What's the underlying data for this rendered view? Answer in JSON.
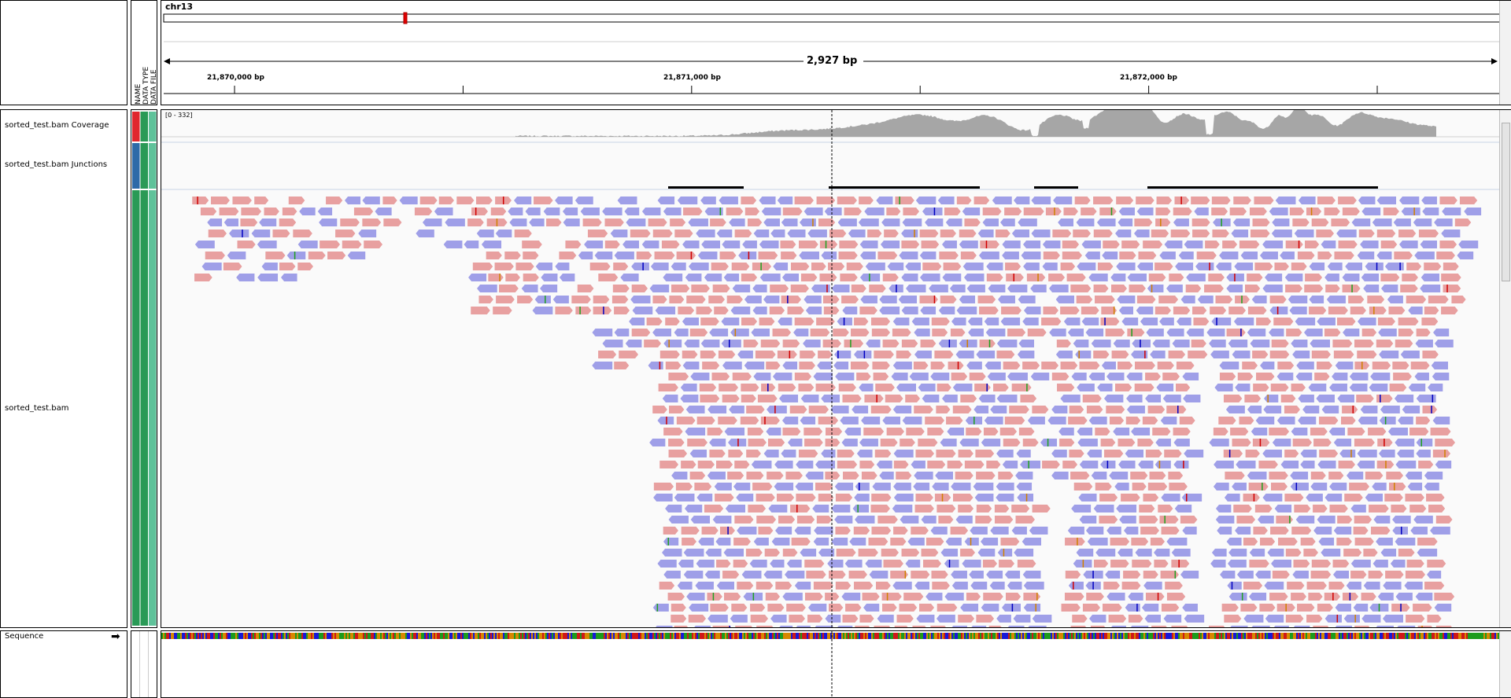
{
  "ruler": {
    "chromosome": "chr13",
    "span_label": "2,927 bp",
    "ticks": [
      {
        "label": "21,870,000 bp",
        "pos": 21870000
      },
      {
        "label": "21,871,000 bp",
        "pos": 21871000
      },
      {
        "label": "21,872,000 bp",
        "pos": 21872000
      }
    ],
    "minor_ticks": [
      21870500,
      21871500,
      21872500
    ],
    "view_start": 21869845,
    "view_end": 21872772
  },
  "attribute_headers": [
    "NAME",
    "DATA TYPE",
    "DATA FILE"
  ],
  "tracks": {
    "coverage": {
      "name": "sorted_test.bam Coverage",
      "range_label": "[0 - 332]",
      "color": "#a6a6a6"
    },
    "junctions": {
      "name": "sorted_test.bam Junctions"
    },
    "alignments": {
      "name": "sorted_test.bam",
      "forward_color": "#e8a0a0",
      "reverse_color": "#9f9fe8"
    },
    "sequence": {
      "name": "Sequence"
    }
  },
  "attribute_colors": {
    "coverage": [
      "#e0262d",
      "#2a9a56",
      "#5fc29a"
    ],
    "junctions": [
      "#2d6aa8",
      "#2a9a56",
      "#5fc29a"
    ],
    "alignments": [
      "#2a9a56",
      "#2a9a56",
      "#5fc29a"
    ]
  }
}
